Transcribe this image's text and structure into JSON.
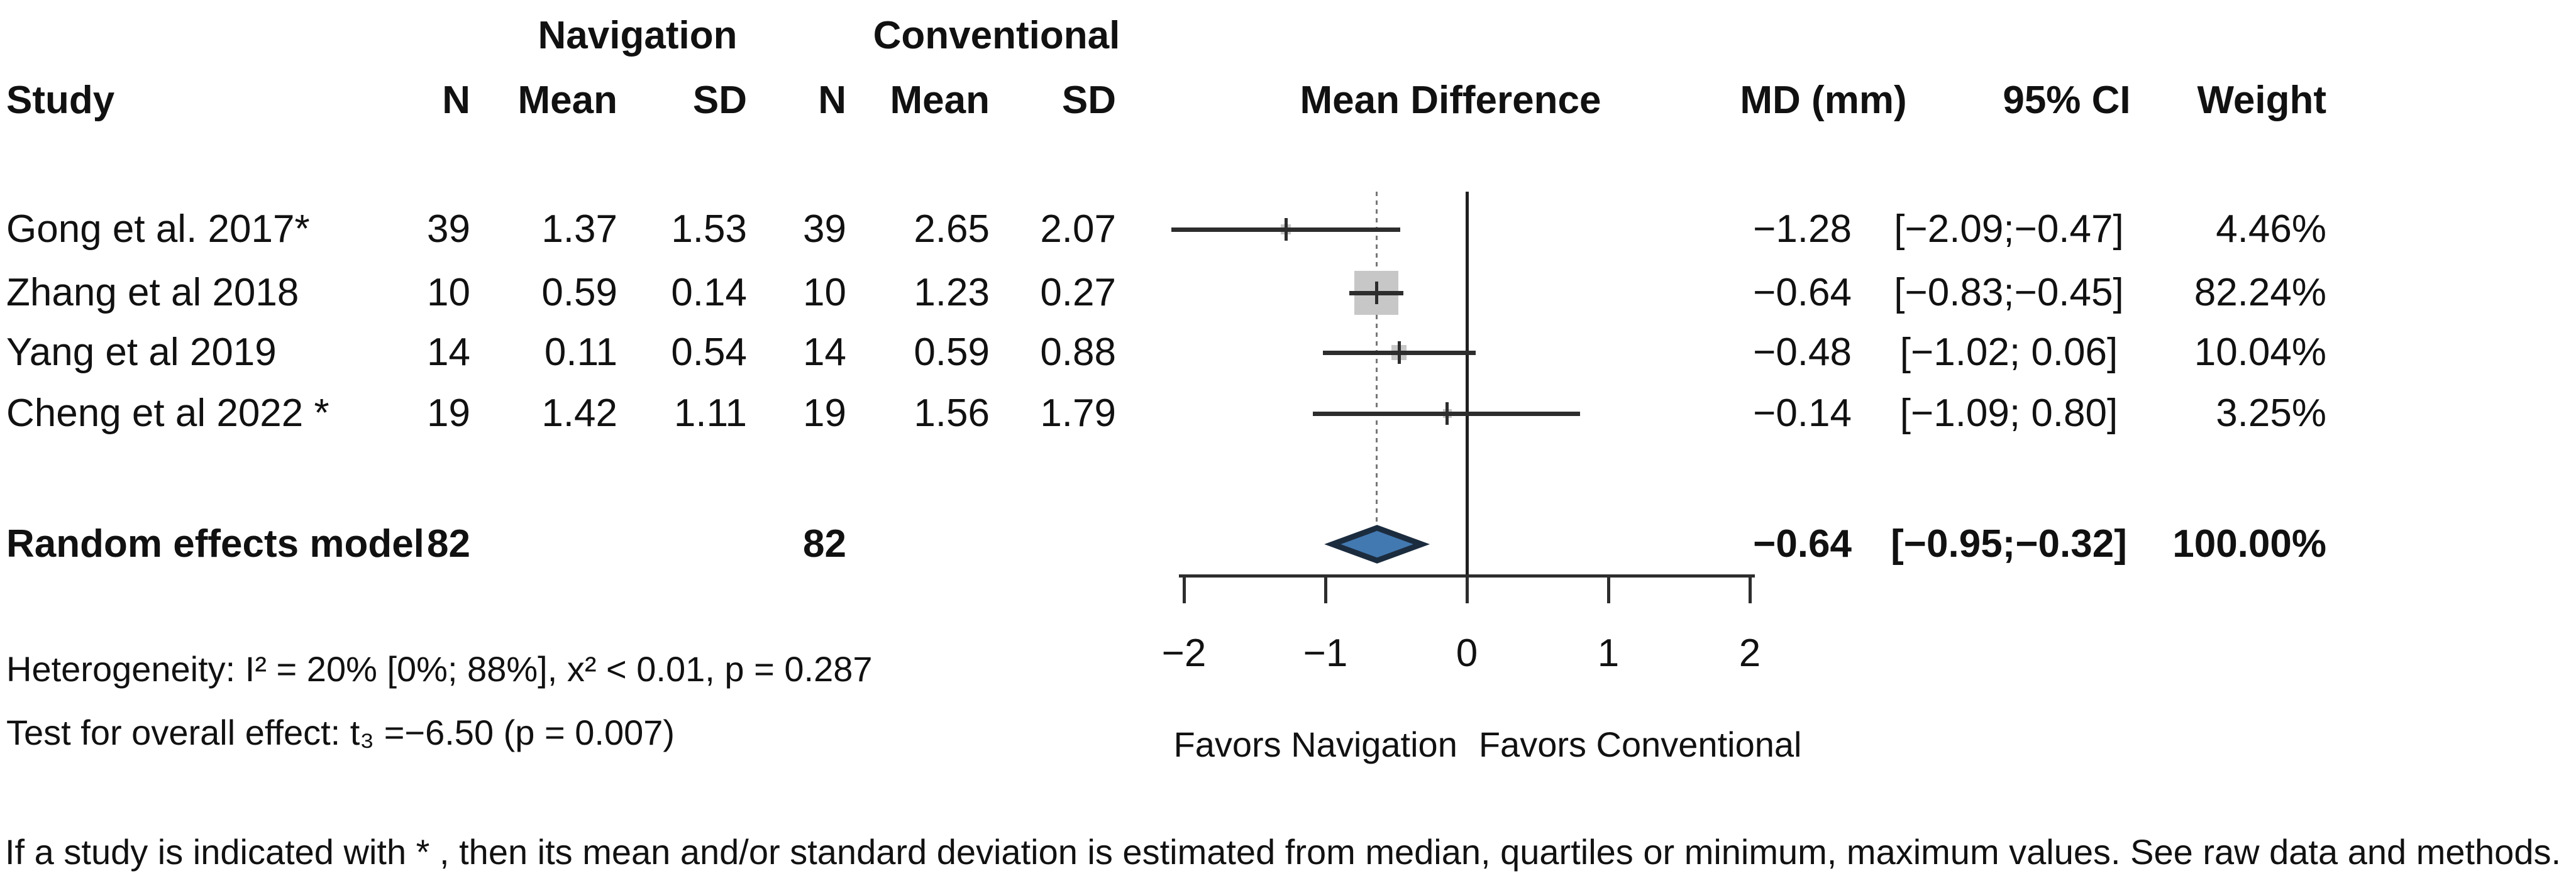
{
  "chart_data": {
    "type": "forest",
    "title": "",
    "effect_measure": "Mean Difference (mm)",
    "group_headers": {
      "navigation": "Navigation",
      "conventional": "Conventional"
    },
    "columns": {
      "study": "Study",
      "n": "N",
      "mean": "Mean",
      "sd": "SD",
      "effect_label": "Mean Difference",
      "md": "MD (mm)",
      "ci": "95% CI",
      "weight": "Weight"
    },
    "studies": [
      {
        "study": "Gong et al. 2017*",
        "nav_n": 39,
        "nav_mean": 1.37,
        "nav_sd": 1.53,
        "conv_n": 39,
        "conv_mean": 2.65,
        "conv_sd": 2.07,
        "md": -1.28,
        "ci_low": -2.09,
        "ci_high": -0.47,
        "weight_pct": 4.46
      },
      {
        "study": "Zhang et al 2018",
        "nav_n": 10,
        "nav_mean": 0.59,
        "nav_sd": 0.14,
        "conv_n": 10,
        "conv_mean": 1.23,
        "conv_sd": 0.27,
        "md": -0.64,
        "ci_low": -0.83,
        "ci_high": -0.45,
        "weight_pct": 82.24
      },
      {
        "study": "Yang et al 2019",
        "nav_n": 14,
        "nav_mean": 0.11,
        "nav_sd": 0.54,
        "conv_n": 14,
        "conv_mean": 0.59,
        "conv_sd": 0.88,
        "md": -0.48,
        "ci_low": -1.02,
        "ci_high": 0.06,
        "weight_pct": 10.04
      },
      {
        "study": "Cheng et al 2022 *",
        "nav_n": 19,
        "nav_mean": 1.42,
        "nav_sd": 1.11,
        "conv_n": 19,
        "conv_mean": 1.56,
        "conv_sd": 1.79,
        "md": -0.14,
        "ci_low": -1.09,
        "ci_high": 0.8,
        "weight_pct": 3.25
      }
    ],
    "summary": {
      "study": "Random effects model",
      "nav_n": 82,
      "conv_n": 82,
      "md": -0.64,
      "ci_low": -0.95,
      "ci_high": -0.32,
      "weight_pct": 100.0
    },
    "xaxis": {
      "ticks": [
        -2,
        -1,
        0,
        1,
        2
      ],
      "xlim": [
        -2.1,
        2.1
      ],
      "zero_line": 0,
      "pooled_line": -0.64,
      "grid": false
    },
    "footers": {
      "heterogeneity": "Heterogeneity: I² = 20% [0%; 88%], x² < 0.01, p = 0.287",
      "overall_effect": "Test for overall effect: t₃ =−6.50 (p = 0.007)",
      "favors_left": "Favors Navigation",
      "favors_right": "Favors Conventional",
      "asterisk_note": "If a study is indicated with * , then its mean and/or standard deviation is estimated from median, quartiles or minimum, maximum values. See raw data and methods."
    },
    "colors": {
      "diamond_fill": "#4379b1",
      "diamond_border": "#1c2c3f",
      "weight_square": "#c7c7c7",
      "ci_line": "#2d2d2d",
      "text": "#111111"
    }
  }
}
